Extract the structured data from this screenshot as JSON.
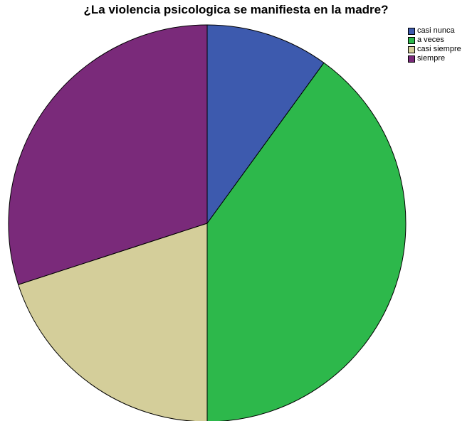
{
  "chart_data": {
    "type": "pie",
    "title": "¿La violencia psicologica se manifiesta en la madre?",
    "legend_position": "top-right",
    "start_angle_deg": 0,
    "direction": "clockwise",
    "slices": [
      {
        "label": "casi nunca",
        "value": 10,
        "color": "#3D5AAE"
      },
      {
        "label": "a veces",
        "value": 40,
        "color": "#2DB84B"
      },
      {
        "label": "casi siempre",
        "value": 20,
        "color": "#D4CE9A"
      },
      {
        "label": "siempre",
        "value": 30,
        "color": "#7A2A7A"
      }
    ]
  }
}
